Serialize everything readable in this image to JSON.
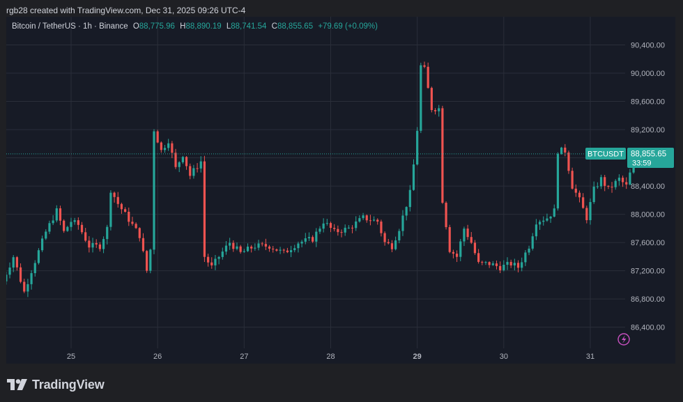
{
  "caption": "rgb28 created with TradingView.com, Dec 31, 2025 09:26 UTC-4",
  "legend": {
    "symbol": "Bitcoin / TetherUS · 1h · Binance",
    "o_label": "O",
    "o_value": "88,775.96",
    "h_label": "H",
    "h_value": "88,890.19",
    "l_label": "L",
    "l_value": "88,741.54",
    "c_label": "C",
    "c_value": "88,855.65",
    "change": "+79.69 (+0.09%)"
  },
  "price_tag": {
    "label": "BTCUSDT",
    "price": "88,855.65",
    "countdown": "33:59"
  },
  "logo_text": "TradingView",
  "colors": {
    "up": "#26a69a",
    "down": "#ef5350",
    "background": "#171b26",
    "grid": "#2a2e39",
    "tag": "#26a69a",
    "alert": "#c850c0"
  },
  "icons": {
    "alert": "lightning-icon",
    "logo": "tradingview-logo-icon"
  },
  "chart_data": {
    "type": "candlestick",
    "title": "Bitcoin / TetherUS · 1h · Binance",
    "interval": "1h",
    "x_ticks": [
      "25",
      "26",
      "27",
      "28",
      "29",
      "30",
      "31"
    ],
    "y_ticks": [
      86400,
      86800,
      87200,
      87600,
      88000,
      88400,
      88800,
      89200,
      89600,
      90000,
      90400
    ],
    "y_tick_labels": [
      "86,400.00",
      "86,800.00",
      "87,200.00",
      "87,600.00",
      "88,000.00",
      "88,400.00",
      "88,800.00",
      "89,200.00",
      "89,600.00",
      "90,000.00",
      "90,400.00"
    ],
    "ylim": [
      86100,
      90800
    ],
    "last_price": 88855.65,
    "grid": true,
    "candles_per_day": 24,
    "first_candle_offset_hours": -19,
    "path": [
      [
        0,
        87050
      ],
      [
        3,
        87400
      ],
      [
        6,
        86900
      ],
      [
        8,
        87200
      ],
      [
        12,
        87750
      ],
      [
        15,
        88050
      ],
      [
        17,
        87750
      ],
      [
        19,
        87900
      ],
      [
        21,
        87850
      ],
      [
        24,
        87550
      ],
      [
        27,
        87550
      ],
      [
        29,
        87800
      ],
      [
        30,
        88350
      ],
      [
        32,
        88150
      ],
      [
        34,
        88000
      ],
      [
        38,
        87700
      ],
      [
        40,
        87200
      ],
      [
        41,
        87500
      ],
      [
        42,
        89200
      ],
      [
        44,
        88900
      ],
      [
        46,
        89050
      ],
      [
        48,
        88650
      ],
      [
        50,
        88850
      ],
      [
        52,
        88550
      ],
      [
        55,
        88750
      ],
      [
        56,
        87400
      ],
      [
        58,
        87250
      ],
      [
        60,
        87400
      ],
      [
        63,
        87600
      ],
      [
        66,
        87450
      ],
      [
        70,
        87550
      ],
      [
        74,
        87550
      ],
      [
        78,
        87450
      ],
      [
        82,
        87600
      ],
      [
        86,
        87650
      ],
      [
        89,
        87900
      ],
      [
        92,
        87750
      ],
      [
        96,
        87800
      ],
      [
        100,
        87950
      ],
      [
        104,
        87900
      ],
      [
        106,
        87600
      ],
      [
        108,
        87550
      ],
      [
        110,
        87800
      ],
      [
        113,
        88300
      ],
      [
        114,
        88700
      ],
      [
        115,
        89200
      ],
      [
        116,
        90100
      ],
      [
        117,
        90050
      ],
      [
        119,
        89500
      ],
      [
        121,
        89500
      ],
      [
        122,
        88200
      ],
      [
        124,
        87500
      ],
      [
        126,
        87400
      ],
      [
        128,
        87800
      ],
      [
        130,
        87600
      ],
      [
        132,
        87300
      ],
      [
        135,
        87300
      ],
      [
        138,
        87250
      ],
      [
        141,
        87300
      ],
      [
        143,
        87250
      ],
      [
        146,
        87550
      ],
      [
        148,
        87900
      ],
      [
        151,
        87950
      ],
      [
        153,
        88050
      ],
      [
        154,
        88900
      ],
      [
        156,
        88900
      ],
      [
        158,
        88400
      ],
      [
        160,
        88200
      ],
      [
        162,
        87950
      ],
      [
        164,
        88350
      ],
      [
        166,
        88500
      ],
      [
        168,
        88350
      ],
      [
        171,
        88500
      ],
      [
        173,
        88400
      ],
      [
        175,
        88750
      ],
      [
        178,
        88850
      ]
    ]
  }
}
